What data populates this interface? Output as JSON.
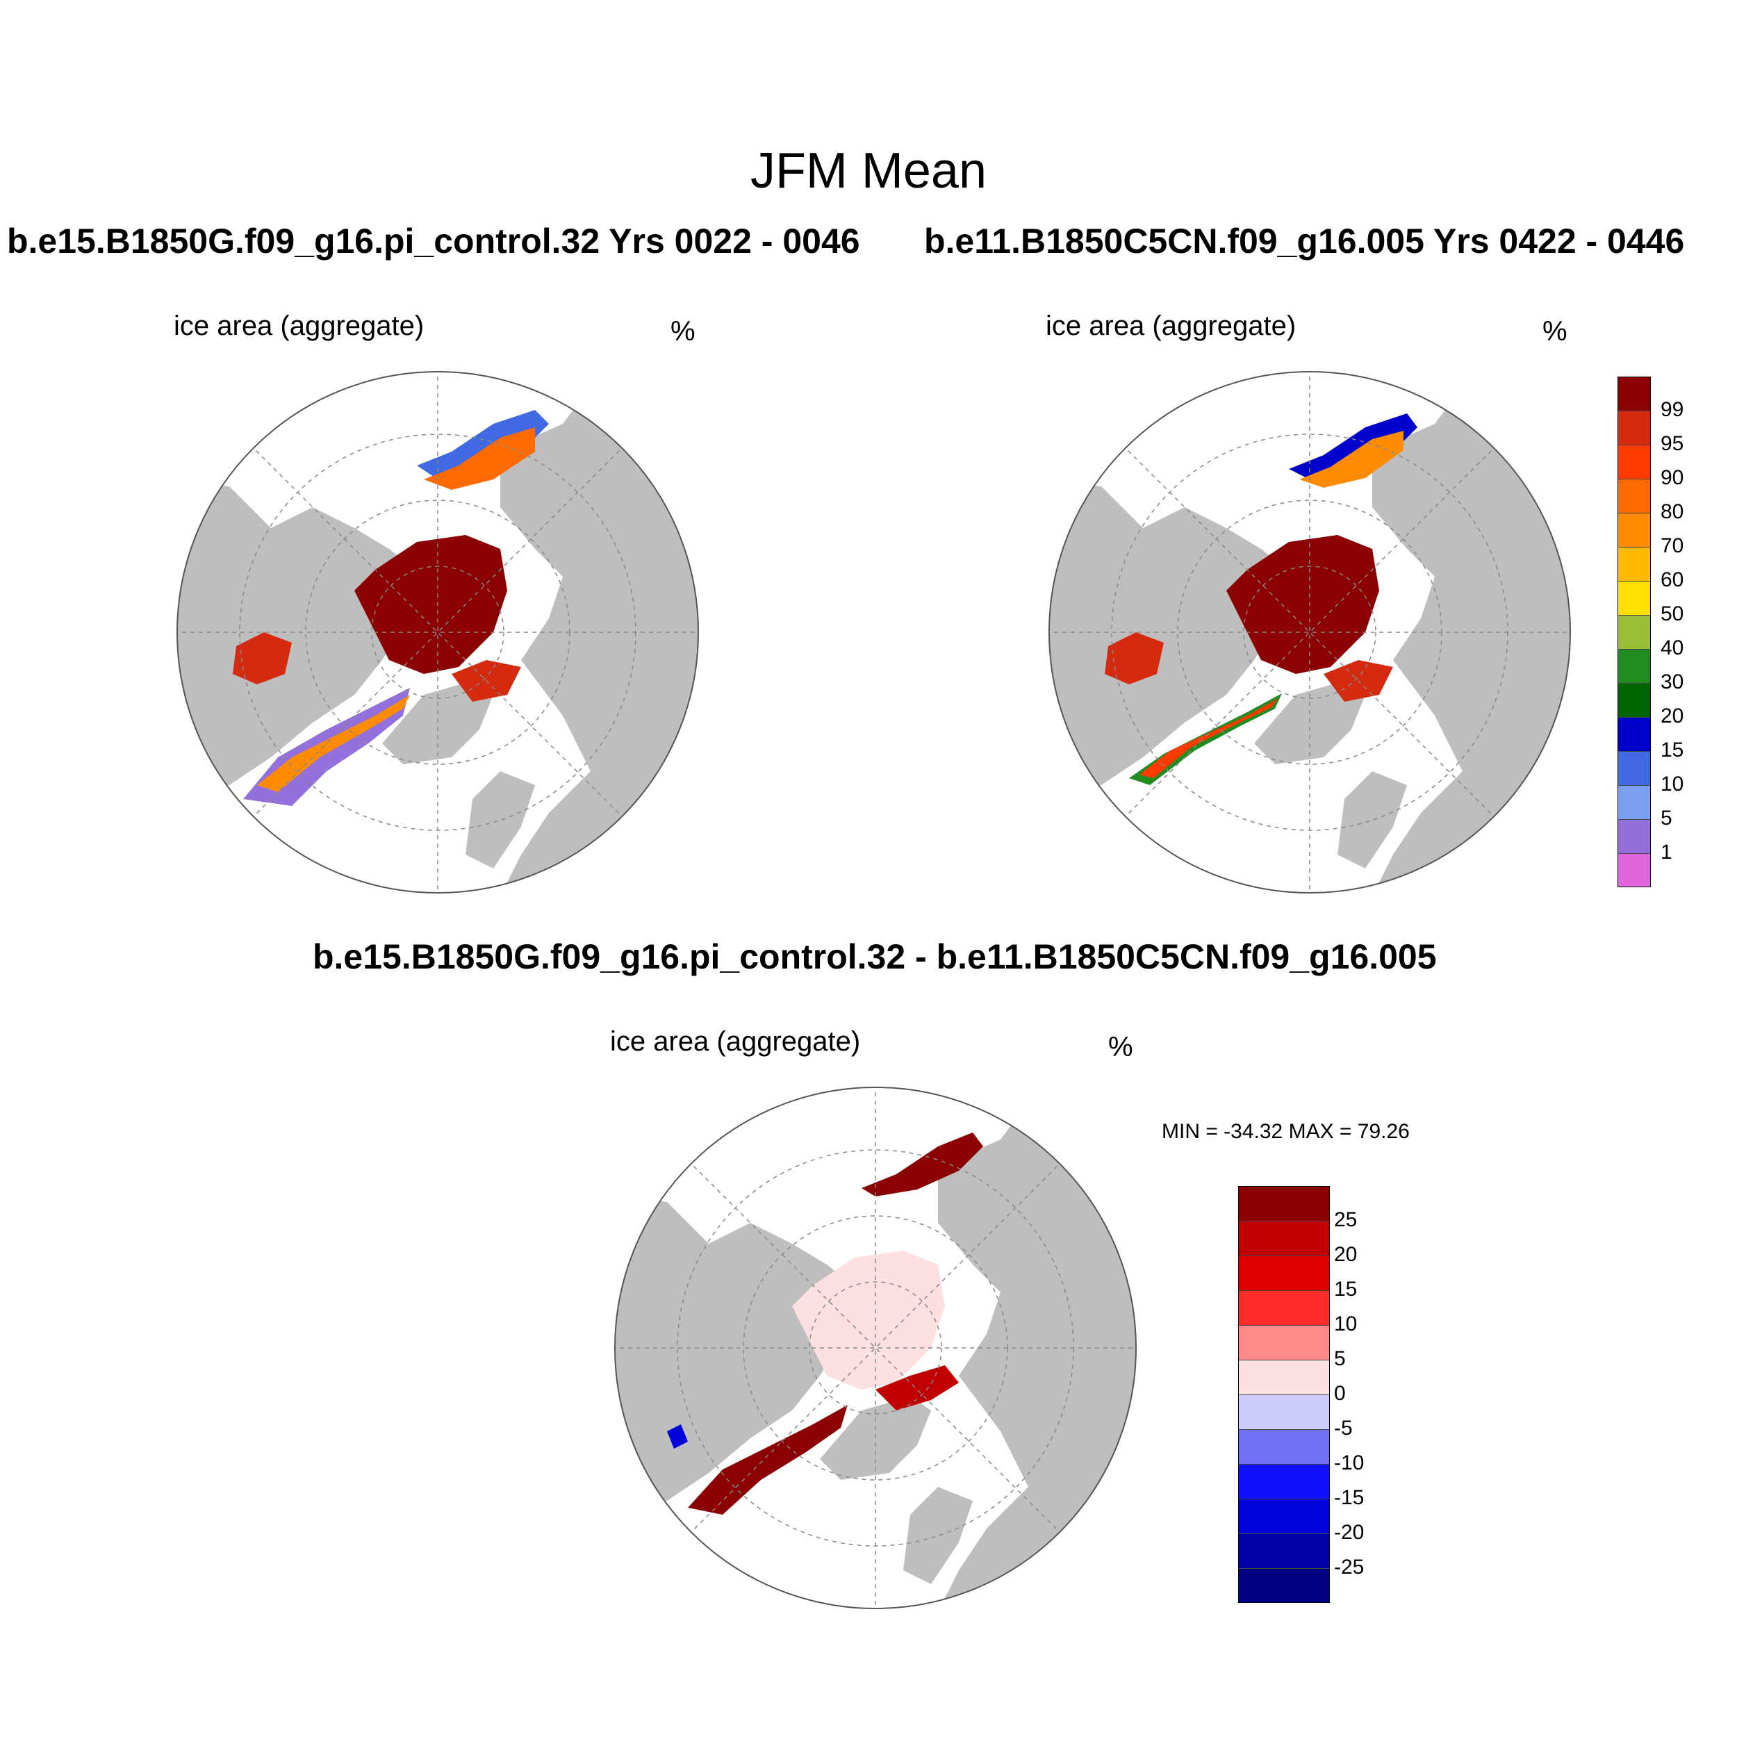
{
  "main_title": "JFM Mean",
  "panels": [
    {
      "title": "b.e15.B1850G.f09_g16.pi_control.32  Yrs 0022 - 0046",
      "variable": "ice area  (aggregate)",
      "unit": "%"
    },
    {
      "title": "b.e11.B1850C5CN.f09_g16.005  Yrs 0422 - 0446",
      "variable": "ice area  (aggregate)",
      "unit": "%"
    },
    {
      "title": "b.e15.B1850G.f09_g16.pi_control.32 - b.e11.B1850C5CN.f09_g16.005",
      "variable": "ice area  (aggregate)",
      "unit": "%",
      "stats": "MIN = -34.32 MAX =  79.26"
    }
  ],
  "colorbar_top": {
    "labels": [
      "99",
      "95",
      "90",
      "80",
      "70",
      "60",
      "50",
      "40",
      "30",
      "20",
      "15",
      "10",
      "5",
      "1"
    ],
    "colors": [
      "#8b0000",
      "#d42a10",
      "#ff3a00",
      "#ff6a00",
      "#ff8c00",
      "#ffb900",
      "#ffe000",
      "#9abe3a",
      "#228b22",
      "#006400",
      "#0000cd",
      "#4169e1",
      "#7b9ff0",
      "#9370db",
      "#e066dd"
    ]
  },
  "colorbar_diff": {
    "labels": [
      "25",
      "20",
      "15",
      "10",
      "5",
      "0",
      "-5",
      "-10",
      "-15",
      "-20",
      "-25"
    ],
    "colors": [
      "#8b0000",
      "#c00000",
      "#e00000",
      "#ff2c2c",
      "#ff8888",
      "#fde0e0",
      "#ccccf8",
      "#7070f5",
      "#1010ff",
      "#0000d8",
      "#0000a8",
      "#000080"
    ]
  },
  "map_colors": {
    "land": "#bebebe",
    "ocean": "#ffffff",
    "ice_core": "#8b0000",
    "grid": "#888888"
  }
}
